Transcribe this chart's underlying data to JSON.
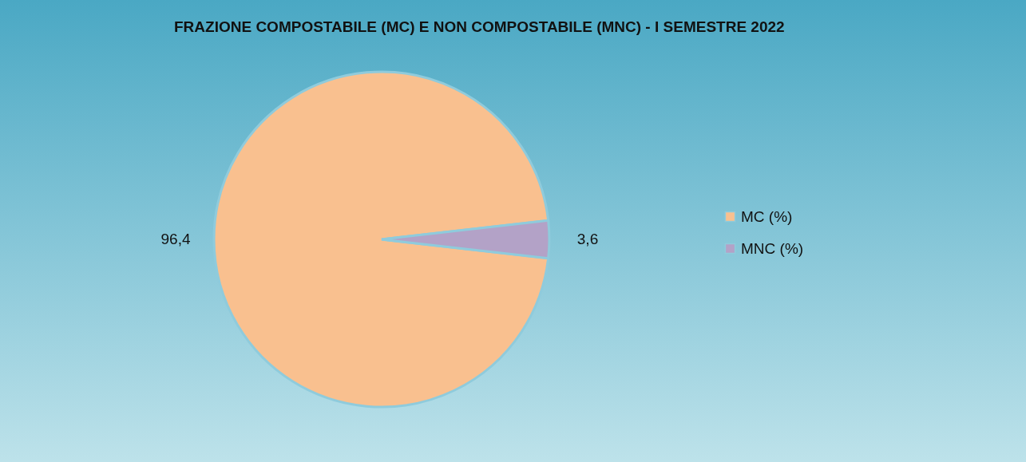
{
  "chart_data": {
    "type": "pie",
    "title": "FRAZIONE COMPOSTABILE (MC) E NON COMPOSTABILE (MNC) - I SEMESTRE 2022",
    "categories": [
      "MC (%)",
      "MNC (%)"
    ],
    "values": [
      96.4,
      3.6
    ],
    "value_labels": [
      "96,4",
      "3,6"
    ],
    "colors": [
      "#f9c08f",
      "#b3a2c7"
    ],
    "legend": "right"
  }
}
